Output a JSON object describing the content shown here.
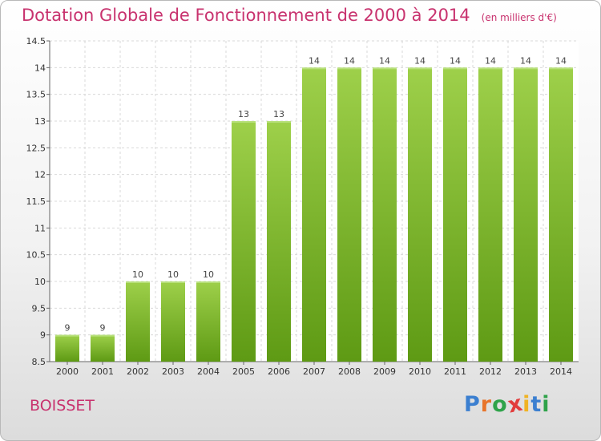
{
  "header": {
    "title": "Dotation Globale de Fonctionnement de 2000 à 2014",
    "unit": "(en milliers d'€)"
  },
  "footer": {
    "commune": "BOISSET",
    "logo_letters": [
      "P",
      "r",
      "o",
      "x",
      "i",
      "t",
      "i"
    ]
  },
  "colors": {
    "title": "#c8326e",
    "bar_light": "#9ed04a",
    "bar_dark": "#5e9a14",
    "logo": [
      "#3b7fd0",
      "#e8742a",
      "#2fa34a",
      "#e23c3c",
      "#f0b323",
      "#3b7fd0",
      "#2fa34a"
    ]
  },
  "chart_data": {
    "type": "bar",
    "categories": [
      "2000",
      "2001",
      "2002",
      "2003",
      "2004",
      "2005",
      "2006",
      "2007",
      "2008",
      "2009",
      "2010",
      "2011",
      "2012",
      "2013",
      "2014"
    ],
    "values": [
      9,
      9,
      10,
      10,
      10,
      13,
      13,
      14,
      14,
      14,
      14,
      14,
      14,
      14,
      14
    ],
    "data_labels": [
      "9",
      "9",
      "10",
      "10",
      "10",
      "13",
      "13",
      "14",
      "14",
      "14",
      "14",
      "14",
      "14",
      "14",
      "14"
    ],
    "ylim": [
      8.5,
      14.5
    ],
    "yticks": [
      8.5,
      9,
      9.5,
      10,
      10.5,
      11,
      11.5,
      12,
      12.5,
      13,
      13.5,
      14,
      14.5
    ],
    "ytick_labels": [
      "8.5",
      "9",
      "9.5",
      "10",
      "10.5",
      "11",
      "11.5",
      "12",
      "12.5",
      "13",
      "13.5",
      "14",
      "14.5"
    ],
    "grid": true,
    "legend": "none"
  }
}
